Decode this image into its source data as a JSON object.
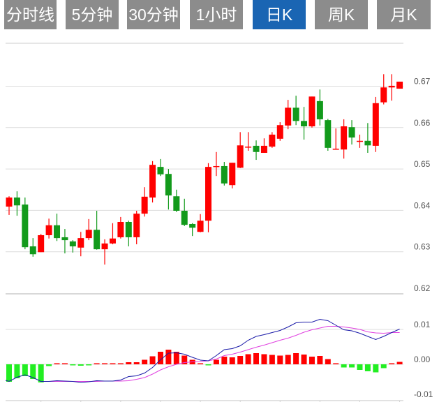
{
  "tabs": [
    {
      "label": "分时线",
      "active": false
    },
    {
      "label": "5分钟",
      "active": false
    },
    {
      "label": "30分钟",
      "active": false
    },
    {
      "label": "1小时",
      "active": false
    },
    {
      "label": "日K",
      "active": true
    },
    {
      "label": "周K",
      "active": false
    },
    {
      "label": "月K",
      "active": false
    }
  ],
  "colors": {
    "up": "#ff0000",
    "down": "#129a1b",
    "macd_down": "#22ee22",
    "dif": "#1a1aa8",
    "dea": "#e040e0",
    "tab": "#8c8c8c",
    "tab_active": "#1a65b3"
  },
  "chart_data": [
    {
      "type": "candlestick",
      "title": "日K",
      "ylim": [
        0.62,
        0.68
      ],
      "y_ticks": [
        "0.67",
        "0.66",
        "0.65",
        "0.64",
        "0.63",
        "0.62"
      ],
      "y_tick_values": [
        0.67,
        0.66,
        0.65,
        0.64,
        0.63,
        0.62
      ],
      "ohlc": [
        [
          0.6409,
          0.6434,
          0.6389,
          0.6431
        ],
        [
          0.6431,
          0.6446,
          0.6387,
          0.6412
        ],
        [
          0.6414,
          0.6431,
          0.6306,
          0.6311
        ],
        [
          0.6313,
          0.6333,
          0.6288,
          0.6294
        ],
        [
          0.6299,
          0.6343,
          0.6299,
          0.634
        ],
        [
          0.634,
          0.638,
          0.6332,
          0.6364
        ],
        [
          0.6364,
          0.6392,
          0.6326,
          0.6333
        ],
        [
          0.6335,
          0.6355,
          0.6296,
          0.6328
        ],
        [
          0.6325,
          0.6328,
          0.6298,
          0.6313
        ],
        [
          0.631,
          0.6348,
          0.6289,
          0.6333
        ],
        [
          0.6333,
          0.6379,
          0.6328,
          0.6353
        ],
        [
          0.6353,
          0.6399,
          0.6305,
          0.6306
        ],
        [
          0.6306,
          0.633,
          0.6269,
          0.632
        ],
        [
          0.632,
          0.6369,
          0.6318,
          0.6332
        ],
        [
          0.6335,
          0.6384,
          0.6332,
          0.6372
        ],
        [
          0.6372,
          0.6375,
          0.6313,
          0.6335
        ],
        [
          0.6335,
          0.6399,
          0.6318,
          0.6392
        ],
        [
          0.6392,
          0.6456,
          0.6385,
          0.6433
        ],
        [
          0.6431,
          0.6519,
          0.6419,
          0.651
        ],
        [
          0.6505,
          0.6524,
          0.6483,
          0.6487
        ],
        [
          0.6488,
          0.65,
          0.6402,
          0.6436
        ],
        [
          0.6434,
          0.645,
          0.6396,
          0.6399
        ],
        [
          0.6399,
          0.6428,
          0.6362,
          0.6365
        ],
        [
          0.6367,
          0.6369,
          0.6338,
          0.6358
        ],
        [
          0.6348,
          0.6391,
          0.6347,
          0.6375
        ],
        [
          0.6375,
          0.6514,
          0.6347,
          0.6505
        ],
        [
          0.6505,
          0.6541,
          0.6483,
          0.6507
        ],
        [
          0.6507,
          0.6517,
          0.646,
          0.6465
        ],
        [
          0.6461,
          0.6515,
          0.6453,
          0.6515
        ],
        [
          0.6503,
          0.6589,
          0.6502,
          0.6557
        ],
        [
          0.6552,
          0.6589,
          0.6544,
          0.6554
        ],
        [
          0.6556,
          0.6569,
          0.6522,
          0.6541
        ],
        [
          0.6539,
          0.6574,
          0.6539,
          0.6556
        ],
        [
          0.6554,
          0.6589,
          0.6551,
          0.6583
        ],
        [
          0.6573,
          0.6613,
          0.6568,
          0.6606
        ],
        [
          0.6605,
          0.6667,
          0.6596,
          0.6648
        ],
        [
          0.6648,
          0.6677,
          0.6606,
          0.6616
        ],
        [
          0.6616,
          0.665,
          0.6571,
          0.6603
        ],
        [
          0.6603,
          0.6675,
          0.66,
          0.6675
        ],
        [
          0.6664,
          0.6692,
          0.6605,
          0.662
        ],
        [
          0.6618,
          0.6621,
          0.6544,
          0.6551
        ],
        [
          0.6547,
          0.6598,
          0.6547,
          0.6549
        ],
        [
          0.6547,
          0.662,
          0.6525,
          0.6603
        ],
        [
          0.6601,
          0.6618,
          0.6559,
          0.6576
        ],
        [
          0.6566,
          0.6583,
          0.6551,
          0.6568
        ],
        [
          0.6568,
          0.6611,
          0.6539,
          0.6557
        ],
        [
          0.6556,
          0.6674,
          0.6541,
          0.6659
        ],
        [
          0.6661,
          0.6729,
          0.6656,
          0.6697
        ],
        [
          0.6697,
          0.6729,
          0.6665,
          0.6701
        ],
        [
          0.6694,
          0.6711,
          0.6694,
          0.6711
        ]
      ]
    },
    {
      "type": "macd",
      "ylim": [
        -0.011,
        0.015
      ],
      "y_ticks": [
        "0.01",
        "0.00",
        "-0.01"
      ],
      "y_tick_values": [
        0.01,
        0.0,
        -0.01
      ],
      "histogram": [
        -0.005,
        -0.004,
        -0.0034,
        -0.0042,
        -0.0052,
        -0.0005,
        0,
        0,
        -0.0003,
        -0.0004,
        -0.0003,
        0.0002,
        0,
        0,
        0.0001,
        0.0006,
        0.0006,
        0.0013,
        0.0023,
        0.0036,
        0.0042,
        0.0036,
        0.0025,
        0.0013,
        0.0003,
        -0.0001,
        0.0013,
        0.0022,
        0.002,
        0.0024,
        0.0029,
        0.0032,
        0.0029,
        0.0027,
        0.0025,
        0.0027,
        0.0032,
        0.0028,
        0.0022,
        0.0024,
        0.0015,
        0.0001,
        -0.0009,
        -0.0009,
        -0.0016,
        -0.002,
        -0.0023,
        -0.0011,
        0.0001,
        0.0007
      ],
      "dif": [
        -0.0049,
        -0.0037,
        -0.003,
        -0.0038,
        -0.0049,
        -0.0049,
        -0.0047,
        -0.0048,
        -0.0049,
        -0.0052,
        -0.005,
        -0.0047,
        -0.0048,
        -0.0048,
        -0.0045,
        -0.0035,
        -0.0033,
        -0.0025,
        -0.0009,
        0.0013,
        0.0032,
        0.0033,
        0.0029,
        0.002,
        0.0012,
        0.001,
        0.0025,
        0.0042,
        0.0045,
        0.0053,
        0.0069,
        0.008,
        0.0085,
        0.0091,
        0.0097,
        0.0107,
        0.0119,
        0.0121,
        0.0121,
        0.0129,
        0.0125,
        0.0112,
        0.0099,
        0.0096,
        0.0089,
        0.008,
        0.0071,
        0.008,
        0.0091,
        0.0101
      ],
      "dea": [
        null,
        null,
        null,
        null,
        null,
        -0.0049,
        -0.0049,
        -0.0049,
        -0.0049,
        -0.0049,
        -0.0049,
        -0.0049,
        -0.0048,
        -0.0048,
        -0.0048,
        -0.0047,
        -0.0043,
        -0.0038,
        -0.0028,
        -0.0016,
        -0.0007,
        0.0,
        0.0005,
        0.0007,
        0.0008,
        0.001,
        0.0015,
        0.0025,
        0.0029,
        0.0035,
        0.0042,
        0.0049,
        0.0055,
        0.0062,
        0.0069,
        0.0075,
        0.0083,
        0.0092,
        0.0099,
        0.0104,
        0.0109,
        0.0109,
        0.0107,
        0.0104,
        0.01,
        0.0093,
        0.009,
        0.0089,
        0.0091,
        0.0091
      ]
    }
  ]
}
